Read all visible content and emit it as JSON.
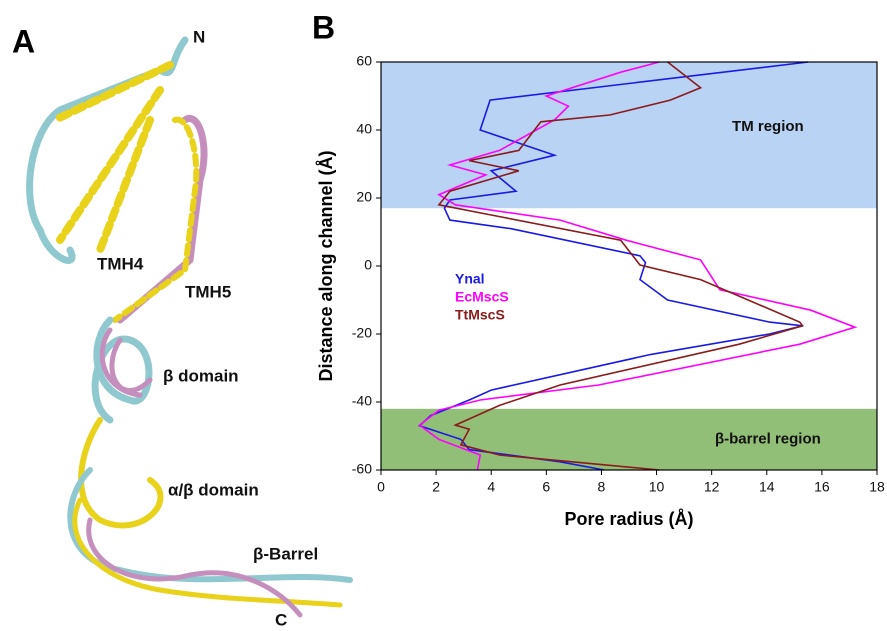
{
  "panel_a": {
    "letter": "A",
    "labels": [
      "N",
      "TMH4",
      "TMH5",
      "β domain",
      "α/β domain",
      "β-Barrel",
      "C"
    ]
  },
  "panel_b": {
    "letter": "B"
  },
  "chart_data": {
    "type": "line",
    "x_label": "Pore radius (Å)",
    "y_label": "Distance along channel (Å)",
    "xlim": [
      0,
      18
    ],
    "xticks": [
      0,
      2,
      4,
      6,
      8,
      10,
      12,
      14,
      16,
      18
    ],
    "ylim": [
      -60,
      60
    ],
    "yticks": [
      -60,
      -40,
      -20,
      0,
      20,
      40,
      60
    ],
    "regions": [
      {
        "label": "TM region",
        "y": [
          17,
          60
        ],
        "color": "#b9d3f5"
      },
      {
        "label": "β-barrel region",
        "y": [
          -60,
          -42
        ],
        "color": "#92bf77"
      }
    ],
    "series": [
      {
        "name": "Ynal",
        "color": "#1a1ae6",
        "x": [
          15.5,
          3.96,
          3.6,
          6.3,
          4,
          4.9,
          2.5,
          2.3,
          2.5,
          4.7,
          9.4,
          9.6,
          9.4,
          10.4,
          14.1,
          15.3,
          14.1,
          9.8,
          4,
          3.2,
          1.8,
          1.4,
          2.9,
          3.2,
          6.5,
          8.1
        ],
        "values": [
          60,
          48.8,
          40,
          32.6,
          28,
          22,
          19.4,
          17,
          13.5,
          11,
          3,
          1,
          -4,
          -10,
          -16.5,
          -17.6,
          -20,
          -26,
          -36.5,
          -39.4,
          -44,
          -47,
          -51,
          -54,
          -57.6,
          -60
        ]
      },
      {
        "name": "EcMscS",
        "color": "#ff00ff",
        "x": [
          10.1,
          8.7,
          6,
          6.8,
          6.3,
          4.3,
          2.5,
          3.8,
          2.1,
          2.7,
          6.5,
          8.9,
          11.6,
          12.3,
          15.6,
          17.2,
          15.2,
          7.9,
          3.6,
          2.1,
          1.4,
          2.1,
          3.6,
          3.5
        ],
        "values": [
          60,
          57,
          50,
          47,
          43,
          34,
          29.7,
          26.8,
          21,
          18,
          13.5,
          7.6,
          1.8,
          -7,
          -13,
          -18,
          -23,
          -35,
          -39.4,
          -42.4,
          -46.8,
          -51,
          -55.6,
          -60
        ]
      },
      {
        "name": "TtMscS",
        "color": "#8b1a1a",
        "x": [
          10.4,
          11.6,
          10.5,
          8.3,
          5.8,
          5,
          3.2,
          5,
          2.5,
          2.1,
          4,
          8.7,
          9.4,
          11.6,
          15.2,
          15.3,
          13,
          6.5,
          4.3,
          2.7,
          3.2,
          2.9,
          4.3,
          10.1
        ],
        "values": [
          60,
          52.4,
          48.8,
          44.4,
          42.4,
          34,
          31,
          28,
          22,
          18,
          15,
          7.6,
          0.3,
          -4,
          -16.5,
          -17.6,
          -23,
          -35,
          -41,
          -46.8,
          -48,
          -52.6,
          -55.6,
          -60
        ]
      }
    ]
  }
}
